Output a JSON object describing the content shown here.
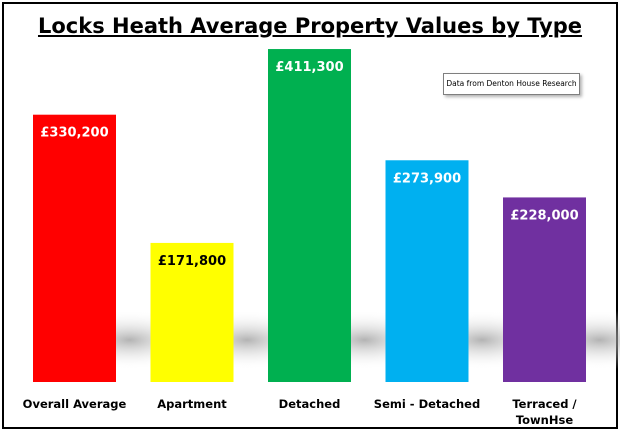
{
  "chart_data": {
    "type": "bar",
    "title": "Locks Heath Average Property Values by Type",
    "annotation": "Data from Denton House Research",
    "categories": [
      "Overall Average",
      "Apartment",
      "Detached",
      "Semi - Detached",
      "Terraced / TownHse"
    ],
    "category_lines": [
      [
        "Overall Average"
      ],
      [
        "Apartment"
      ],
      [
        "Detached"
      ],
      [
        "Semi - Detached"
      ],
      [
        "Terraced /",
        "TownHse"
      ]
    ],
    "values": [
      330200,
      171800,
      411300,
      273900,
      228000
    ],
    "data_labels": [
      "£330,200",
      "£171,800",
      "£411,300",
      "£273,900",
      "£228,000"
    ],
    "colors": [
      "#ff0000",
      "#ffff00",
      "#00b050",
      "#00b0f0",
      "#7030a0"
    ],
    "label_colors": [
      "#ffffff",
      "#000000",
      "#ffffff",
      "#ffffff",
      "#ffffff"
    ],
    "ylim": [
      0,
      420000
    ],
    "grid": false,
    "legend": "none"
  }
}
